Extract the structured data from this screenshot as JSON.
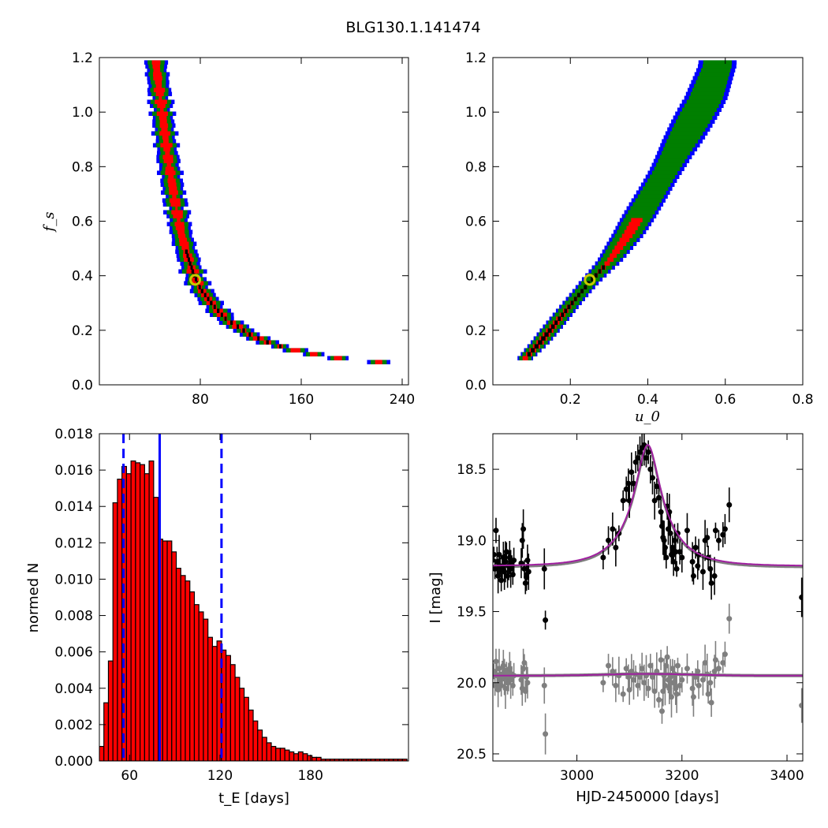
{
  "title": "BLG130.1.141474",
  "colors": {
    "blue": "#0000ff",
    "green": "#007f00",
    "red": "#ff0000",
    "black": "#000000",
    "bar_fill": "#ff0000",
    "model": "#a020a0",
    "model_alt": "#7f7f7f",
    "gray": "#7f7f7f",
    "marker": "#c8c800"
  },
  "chart_data": [
    {
      "id": "tE_vs_fs",
      "type": "heatmap",
      "xlabel": "",
      "ylabel": "f_s",
      "xlim": [
        0,
        245
      ],
      "ylim": [
        0.0,
        1.2
      ],
      "xticks": [
        "80",
        "160",
        "240"
      ],
      "yticks": [
        "0.0",
        "0.2",
        "0.4",
        "0.6",
        "0.8",
        "1.0",
        "1.2"
      ],
      "levels": [
        "blue",
        "green",
        "red",
        "black"
      ],
      "band_center": [
        [
          45,
          1.18
        ],
        [
          50,
          1.0
        ],
        [
          55,
          0.82
        ],
        [
          60,
          0.68
        ],
        [
          65,
          0.56
        ],
        [
          70,
          0.48
        ],
        [
          75,
          0.41
        ],
        [
          80,
          0.36
        ],
        [
          90,
          0.3
        ],
        [
          100,
          0.25
        ],
        [
          110,
          0.22
        ],
        [
          120,
          0.19
        ],
        [
          135,
          0.16
        ],
        [
          150,
          0.14
        ],
        [
          170,
          0.12
        ],
        [
          190,
          0.105
        ],
        [
          210,
          0.095
        ],
        [
          225,
          0.09
        ]
      ],
      "best_fit": {
        "x": 76,
        "y": 0.385
      }
    },
    {
      "id": "u0_vs_fs",
      "type": "heatmap",
      "xlabel": "u_0",
      "ylabel": "",
      "xlim": [
        0.0,
        0.8
      ],
      "ylim": [
        0.0,
        1.2
      ],
      "xticks": [
        "0.2",
        "0.4",
        "0.6",
        "0.8"
      ],
      "yticks": [
        "0.0",
        "0.2",
        "0.4",
        "0.6",
        "0.8",
        "1.0",
        "1.2"
      ],
      "levels": [
        "blue",
        "green",
        "red",
        "black"
      ],
      "band_center": [
        [
          0.08,
          0.1
        ],
        [
          0.12,
          0.16
        ],
        [
          0.16,
          0.23
        ],
        [
          0.2,
          0.3
        ],
        [
          0.25,
          0.385
        ],
        [
          0.3,
          0.46
        ],
        [
          0.35,
          0.56
        ],
        [
          0.4,
          0.68
        ],
        [
          0.45,
          0.8
        ],
        [
          0.5,
          0.93
        ],
        [
          0.55,
          1.06
        ],
        [
          0.58,
          1.18
        ]
      ],
      "best_fit": {
        "x": 0.25,
        "y": 0.385
      }
    },
    {
      "id": "tE_histogram",
      "type": "bar",
      "xlabel": "t_E  [days]",
      "ylabel": "normed N",
      "xlim": [
        40,
        245
      ],
      "ylim": [
        0.0,
        0.018
      ],
      "xticks": [
        "60",
        "120",
        "180"
      ],
      "yticks": [
        "0.000",
        "0.002",
        "0.004",
        "0.006",
        "0.008",
        "0.010",
        "0.012",
        "0.014",
        "0.016",
        "0.018"
      ],
      "bin_width": 3.0,
      "bin_start": 40,
      "values": [
        0.0008,
        0.0032,
        0.0055,
        0.0142,
        0.0155,
        0.0162,
        0.0158,
        0.0165,
        0.0164,
        0.0163,
        0.0158,
        0.0165,
        0.0145,
        0.0122,
        0.0121,
        0.0121,
        0.0115,
        0.0106,
        0.0102,
        0.0099,
        0.0093,
        0.0086,
        0.0082,
        0.0078,
        0.0068,
        0.0063,
        0.0066,
        0.0061,
        0.0058,
        0.0053,
        0.0046,
        0.004,
        0.0035,
        0.0028,
        0.0022,
        0.0017,
        0.0013,
        0.001,
        0.0008,
        0.0007,
        0.0007,
        0.0006,
        0.0005,
        0.0004,
        0.0005,
        0.0004,
        0.0003,
        0.0002,
        0.0002,
        0.0001,
        0.0001,
        0.0001,
        0.0001,
        0.0001,
        0.0001,
        0.0001,
        0.0001,
        0.0001,
        0.0001,
        0.0001,
        0.0001,
        0.0001,
        0.0001,
        0.0001,
        0.0001,
        0.0001,
        0.0001,
        0.0001
      ],
      "median": 80,
      "confidence": [
        56,
        121
      ]
    },
    {
      "id": "light_curve",
      "type": "scatter",
      "xlabel": "HJD-2450000 [days]",
      "ylabel": "I [mag]",
      "xlim": [
        2840,
        3430
      ],
      "ylim": [
        20.55,
        18.25
      ],
      "xticks": [
        "3000",
        "3200",
        "3400"
      ],
      "yticks": [
        "18.5",
        "19.0",
        "19.5",
        "20.0",
        "20.5"
      ],
      "model": {
        "t0": 3135,
        "tE": 80,
        "u0": 0.25,
        "fs": 0.385,
        "baseline": 19.18
      },
      "model_lower": {
        "baseline": 19.95,
        "bump": 0.012
      },
      "points_upper": [
        [
          2842,
          19.1
        ],
        [
          2844,
          19.2
        ],
        [
          2846,
          18.93
        ],
        [
          2848,
          19.15
        ],
        [
          2850,
          19.25
        ],
        [
          2852,
          19.1
        ],
        [
          2854,
          19.18
        ],
        [
          2856,
          19.28
        ],
        [
          2858,
          19.2
        ],
        [
          2860,
          19.12
        ],
        [
          2862,
          19.22
        ],
        [
          2864,
          19.15
        ],
        [
          2866,
          19.08
        ],
        [
          2868,
          19.25
        ],
        [
          2870,
          19.18
        ],
        [
          2872,
          19.12
        ],
        [
          2874,
          19.2
        ],
        [
          2876,
          19.16
        ],
        [
          2878,
          19.24
        ],
        [
          2880,
          19.14
        ],
        [
          2894,
          19.16
        ],
        [
          2896,
          19.0
        ],
        [
          2898,
          18.92
        ],
        [
          2900,
          19.2
        ],
        [
          2902,
          19.3
        ],
        [
          2904,
          19.26
        ],
        [
          2906,
          19.14
        ],
        [
          2908,
          19.22
        ],
        [
          2938,
          19.2
        ],
        [
          2940,
          19.56
        ],
        [
          3050,
          19.12
        ],
        [
          3060,
          19.0
        ],
        [
          3068,
          18.92
        ],
        [
          3074,
          19.05
        ],
        [
          3080,
          18.95
        ],
        [
          3088,
          18.72
        ],
        [
          3094,
          18.64
        ],
        [
          3098,
          18.6
        ],
        [
          3100,
          18.72
        ],
        [
          3104,
          18.52
        ],
        [
          3108,
          18.6
        ],
        [
          3112,
          18.45
        ],
        [
          3116,
          18.42
        ],
        [
          3120,
          18.38
        ],
        [
          3124,
          18.35
        ],
        [
          3128,
          18.33
        ],
        [
          3132,
          18.42
        ],
        [
          3136,
          18.38
        ],
        [
          3140,
          18.5
        ],
        [
          3144,
          18.56
        ],
        [
          3148,
          18.72
        ],
        [
          3152,
          18.62
        ],
        [
          3156,
          18.7
        ],
        [
          3160,
          18.8
        ],
        [
          3162,
          18.9
        ],
        [
          3164,
          18.98
        ],
        [
          3166,
          19.0
        ],
        [
          3168,
          19.05
        ],
        [
          3170,
          19.12
        ],
        [
          3172,
          18.76
        ],
        [
          3174,
          18.92
        ],
        [
          3176,
          18.8
        ],
        [
          3178,
          18.95
        ],
        [
          3180,
          19.1
        ],
        [
          3182,
          19.05
        ],
        [
          3184,
          19.15
        ],
        [
          3186,
          19.0
        ],
        [
          3188,
          19.08
        ],
        [
          3190,
          19.2
        ],
        [
          3192,
          18.95
        ],
        [
          3196,
          19.08
        ],
        [
          3200,
          19.12
        ],
        [
          3210,
          18.93
        ],
        [
          3220,
          19.15
        ],
        [
          3222,
          19.25
        ],
        [
          3226,
          19.05
        ],
        [
          3230,
          19.18
        ],
        [
          3232,
          19.1
        ],
        [
          3240,
          19.22
        ],
        [
          3244,
          19.0
        ],
        [
          3248,
          18.98
        ],
        [
          3250,
          19.12
        ],
        [
          3254,
          19.2
        ],
        [
          3256,
          19.3
        ],
        [
          3262,
          19.25
        ],
        [
          3264,
          18.93
        ],
        [
          3270,
          19.0
        ],
        [
          3278,
          18.96
        ],
        [
          3282,
          18.92
        ],
        [
          3290,
          18.75
        ],
        [
          3428,
          19.4
        ]
      ],
      "points_lower": [
        [
          2842,
          19.92
        ],
        [
          2844,
          20.02
        ],
        [
          2846,
          19.85
        ],
        [
          2848,
          19.95
        ],
        [
          2850,
          20.05
        ],
        [
          2852,
          19.9
        ],
        [
          2854,
          19.98
        ],
        [
          2856,
          20.02
        ],
        [
          2858,
          19.94
        ],
        [
          2860,
          19.88
        ],
        [
          2862,
          19.96
        ],
        [
          2864,
          20.04
        ],
        [
          2866,
          19.92
        ],
        [
          2868,
          20.0
        ],
        [
          2870,
          19.96
        ],
        [
          2872,
          19.9
        ],
        [
          2874,
          19.98
        ],
        [
          2876,
          19.94
        ],
        [
          2878,
          20.02
        ],
        [
          2880,
          19.95
        ],
        [
          2894,
          19.98
        ],
        [
          2896,
          20.04
        ],
        [
          2898,
          19.9
        ],
        [
          2900,
          19.86
        ],
        [
          2902,
          20.06
        ],
        [
          2904,
          19.96
        ],
        [
          2906,
          20.0
        ],
        [
          2938,
          20.02
        ],
        [
          2940,
          20.36
        ],
        [
          3050,
          20.0
        ],
        [
          3060,
          19.88
        ],
        [
          3068,
          19.92
        ],
        [
          3074,
          20.02
        ],
        [
          3080,
          19.95
        ],
        [
          3088,
          20.08
        ],
        [
          3094,
          19.9
        ],
        [
          3098,
          19.96
        ],
        [
          3100,
          20.05
        ],
        [
          3104,
          19.92
        ],
        [
          3108,
          19.98
        ],
        [
          3112,
          19.94
        ],
        [
          3116,
          20.02
        ],
        [
          3120,
          19.96
        ],
        [
          3124,
          19.9
        ],
        [
          3128,
          20.0
        ],
        [
          3132,
          19.95
        ],
        [
          3136,
          20.04
        ],
        [
          3140,
          19.88
        ],
        [
          3144,
          19.96
        ],
        [
          3148,
          20.06
        ],
        [
          3152,
          19.92
        ],
        [
          3156,
          20.12
        ],
        [
          3160,
          19.84
        ],
        [
          3162,
          20.2
        ],
        [
          3164,
          20.06
        ],
        [
          3166,
          19.95
        ],
        [
          3168,
          20.02
        ],
        [
          3170,
          19.88
        ],
        [
          3172,
          19.82
        ],
        [
          3174,
          19.98
        ],
        [
          3176,
          20.04
        ],
        [
          3178,
          19.96
        ],
        [
          3180,
          20.1
        ],
        [
          3182,
          19.9
        ],
        [
          3184,
          20.0
        ],
        [
          3186,
          19.94
        ],
        [
          3188,
          20.04
        ],
        [
          3190,
          20.08
        ],
        [
          3192,
          19.88
        ],
        [
          3196,
          20.02
        ],
        [
          3200,
          19.98
        ],
        [
          3210,
          19.9
        ],
        [
          3220,
          20.04
        ],
        [
          3222,
          20.1
        ],
        [
          3226,
          19.96
        ],
        [
          3230,
          19.92
        ],
        [
          3232,
          20.02
        ],
        [
          3240,
          19.98
        ],
        [
          3244,
          19.86
        ],
        [
          3248,
          19.94
        ],
        [
          3250,
          20.08
        ],
        [
          3254,
          20.0
        ],
        [
          3256,
          20.14
        ],
        [
          3262,
          19.92
        ],
        [
          3264,
          19.84
        ],
        [
          3270,
          19.9
        ],
        [
          3278,
          19.86
        ],
        [
          3282,
          19.8
        ],
        [
          3290,
          19.55
        ],
        [
          3428,
          20.16
        ]
      ]
    }
  ]
}
